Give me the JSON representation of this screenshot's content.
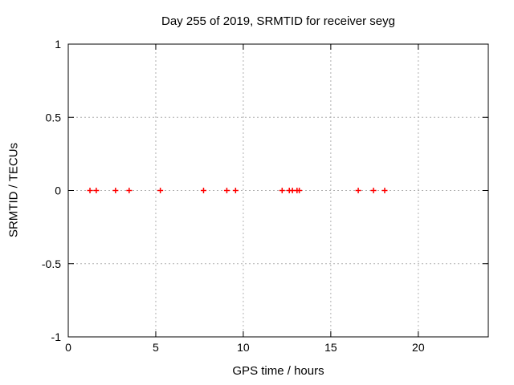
{
  "chart_data": {
    "type": "scatter",
    "title": "Day 255 of 2019, SRMTID for receiver seyg",
    "xlabel": "GPS time / hours",
    "ylabel": "SRMTID / TECUs",
    "xlim": [
      0,
      24
    ],
    "ylim": [
      -1,
      1
    ],
    "xticks": {
      "values": [
        0,
        5,
        10,
        15,
        20
      ],
      "labels": [
        "0",
        "5",
        "10",
        "15",
        "20"
      ]
    },
    "yticks": {
      "values": [
        1,
        0.5,
        0,
        -0.5,
        -1
      ],
      "labels": [
        "1",
        "0.5",
        "0",
        "-0.5",
        "-1"
      ]
    },
    "grid": true,
    "legend": "none",
    "grid_color": "#b0b0b0",
    "axis_color": "#000000",
    "background_color": "#ffffff",
    "series": [
      {
        "name": "SRMTID",
        "marker": "plus",
        "color": "#ff0000",
        "x": [
          1.24,
          1.6,
          2.7,
          3.48,
          5.26,
          7.73,
          9.06,
          9.56,
          12.22,
          12.63,
          12.81,
          13.07,
          13.2,
          16.57,
          17.44,
          18.08
        ],
        "y": [
          0,
          0,
          0,
          0,
          0,
          0,
          0,
          0,
          0,
          0,
          0,
          0,
          0,
          0,
          0,
          0
        ]
      }
    ]
  }
}
